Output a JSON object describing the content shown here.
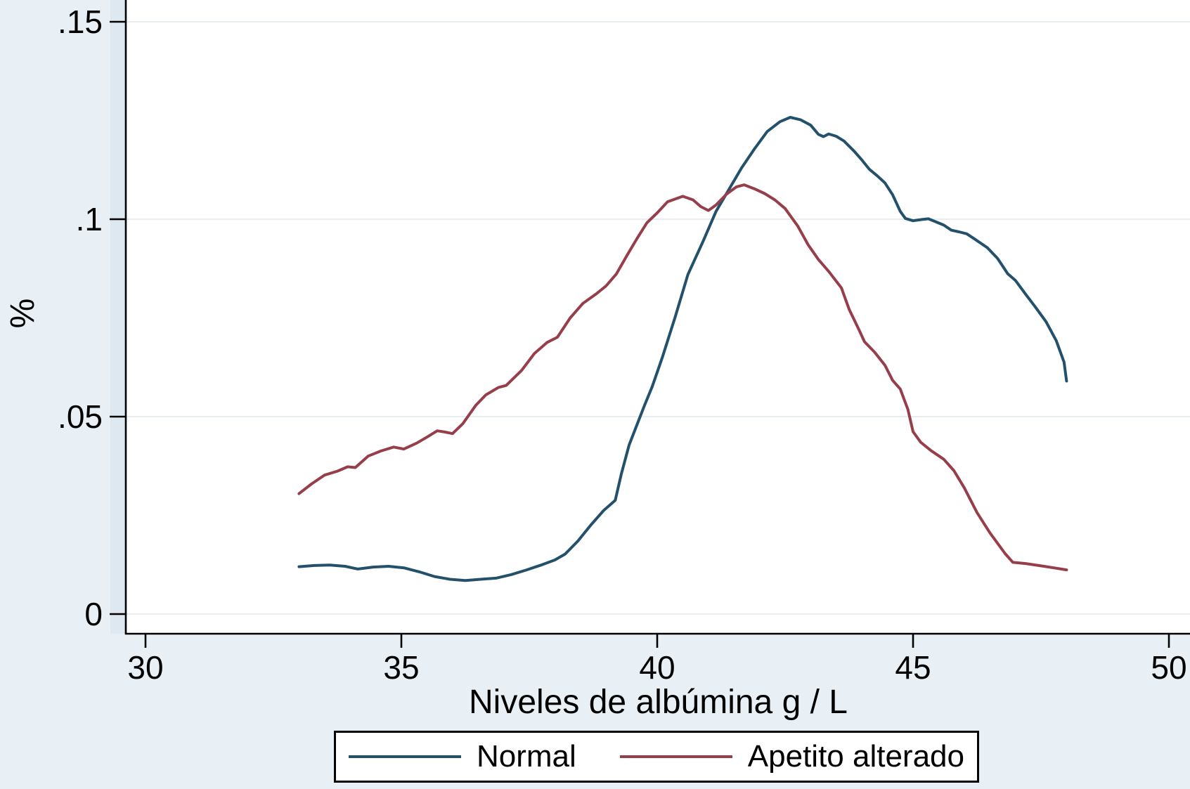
{
  "figure": {
    "background": "#e9f0f5",
    "plot_background": "#ffffff",
    "grid_color": "#e7edf0",
    "axis_color": "#000000",
    "band_color": "#dde8f0"
  },
  "axes": {
    "x": {
      "label": "Niveles de albúmina g / L",
      "ticks": [
        30,
        35,
        40,
        45,
        50
      ],
      "tick_labels": [
        "30",
        "35",
        "40",
        "45",
        "50"
      ]
    },
    "y": {
      "label": "%",
      "ticks": [
        0,
        0.05,
        0.1,
        0.15
      ],
      "tick_labels": [
        "0",
        ".05",
        ".1",
        ".15"
      ]
    }
  },
  "legend": {
    "position": "bottom-center",
    "items": [
      {
        "label": "Normal",
        "color": "#23506b"
      },
      {
        "label": "Apetito alterado",
        "color": "#963f4b"
      }
    ]
  },
  "chart_data": {
    "type": "line",
    "title": "",
    "xlabel": "Niveles de albúmina g / L",
    "ylabel": "%",
    "xlim": [
      29.6,
      50.4
    ],
    "ylim": [
      0,
      0.155
    ],
    "grid": "horizontal",
    "legend_position": "bottom-center",
    "series": [
      {
        "name": "Normal",
        "color": "#23506b",
        "points": [
          [
            33.0,
            0.012
          ],
          [
            33.3,
            0.0123
          ],
          [
            33.6,
            0.0124
          ],
          [
            33.9,
            0.0121
          ],
          [
            34.15,
            0.0114
          ],
          [
            34.45,
            0.0119
          ],
          [
            34.75,
            0.0121
          ],
          [
            35.05,
            0.0117
          ],
          [
            35.35,
            0.0107
          ],
          [
            35.65,
            0.0095
          ],
          [
            35.95,
            0.0088
          ],
          [
            36.25,
            0.0085
          ],
          [
            36.55,
            0.0088
          ],
          [
            36.85,
            0.0091
          ],
          [
            37.15,
            0.01
          ],
          [
            37.45,
            0.0112
          ],
          [
            37.75,
            0.0125
          ],
          [
            38.0,
            0.0137
          ],
          [
            38.2,
            0.0152
          ],
          [
            38.45,
            0.0185
          ],
          [
            38.7,
            0.0225
          ],
          [
            38.95,
            0.0262
          ],
          [
            39.18,
            0.0288
          ],
          [
            39.3,
            0.0355
          ],
          [
            39.45,
            0.0428
          ],
          [
            39.6,
            0.0478
          ],
          [
            39.75,
            0.0528
          ],
          [
            39.9,
            0.0575
          ],
          [
            40.1,
            0.065
          ],
          [
            40.35,
            0.0752
          ],
          [
            40.6,
            0.086
          ],
          [
            40.9,
            0.0945
          ],
          [
            41.15,
            0.102
          ],
          [
            41.4,
            0.1075
          ],
          [
            41.65,
            0.113
          ],
          [
            41.9,
            0.1178
          ],
          [
            42.15,
            0.1222
          ],
          [
            42.4,
            0.1247
          ],
          [
            42.6,
            0.1258
          ],
          [
            42.8,
            0.1252
          ],
          [
            43.0,
            0.1238
          ],
          [
            43.15,
            0.1215
          ],
          [
            43.25,
            0.1209
          ],
          [
            43.35,
            0.1216
          ],
          [
            43.5,
            0.121
          ],
          [
            43.65,
            0.1198
          ],
          [
            43.85,
            0.1172
          ],
          [
            44.0,
            0.115
          ],
          [
            44.15,
            0.1126
          ],
          [
            44.3,
            0.111
          ],
          [
            44.45,
            0.1092
          ],
          [
            44.6,
            0.1062
          ],
          [
            44.75,
            0.102
          ],
          [
            44.85,
            0.1002
          ],
          [
            45.0,
            0.0996
          ],
          [
            45.15,
            0.0999
          ],
          [
            45.3,
            0.1001
          ],
          [
            45.45,
            0.0993
          ],
          [
            45.6,
            0.0985
          ],
          [
            45.75,
            0.0972
          ],
          [
            45.9,
            0.0968
          ],
          [
            46.05,
            0.0963
          ],
          [
            46.2,
            0.095
          ],
          [
            46.45,
            0.0928
          ],
          [
            46.65,
            0.0901
          ],
          [
            46.85,
            0.0862
          ],
          [
            47.0,
            0.0845
          ],
          [
            47.2,
            0.081
          ],
          [
            47.4,
            0.0776
          ],
          [
            47.6,
            0.074
          ],
          [
            47.8,
            0.0692
          ],
          [
            47.95,
            0.0638
          ],
          [
            48.0,
            0.059
          ]
        ]
      },
      {
        "name": "Apetito alterado",
        "color": "#963f4b",
        "points": [
          [
            33.0,
            0.0305
          ],
          [
            33.25,
            0.033
          ],
          [
            33.5,
            0.0352
          ],
          [
            33.75,
            0.0362
          ],
          [
            33.95,
            0.0373
          ],
          [
            34.1,
            0.0371
          ],
          [
            34.35,
            0.04
          ],
          [
            34.6,
            0.0413
          ],
          [
            34.85,
            0.0423
          ],
          [
            35.05,
            0.0418
          ],
          [
            35.3,
            0.0433
          ],
          [
            35.5,
            0.0448
          ],
          [
            35.7,
            0.0464
          ],
          [
            35.85,
            0.0461
          ],
          [
            36.0,
            0.0457
          ],
          [
            36.2,
            0.0482
          ],
          [
            36.45,
            0.0528
          ],
          [
            36.65,
            0.0555
          ],
          [
            36.9,
            0.0574
          ],
          [
            37.05,
            0.0579
          ],
          [
            37.35,
            0.0617
          ],
          [
            37.6,
            0.066
          ],
          [
            37.85,
            0.0688
          ],
          [
            38.05,
            0.0701
          ],
          [
            38.3,
            0.075
          ],
          [
            38.55,
            0.0787
          ],
          [
            38.8,
            0.081
          ],
          [
            39.0,
            0.0831
          ],
          [
            39.2,
            0.0861
          ],
          [
            39.4,
            0.0906
          ],
          [
            39.6,
            0.095
          ],
          [
            39.8,
            0.0991
          ],
          [
            40.0,
            0.1016
          ],
          [
            40.2,
            0.1044
          ],
          [
            40.5,
            0.1058
          ],
          [
            40.7,
            0.1049
          ],
          [
            40.85,
            0.1032
          ],
          [
            41.0,
            0.1022
          ],
          [
            41.15,
            0.1036
          ],
          [
            41.35,
            0.1063
          ],
          [
            41.55,
            0.1082
          ],
          [
            41.7,
            0.1087
          ],
          [
            41.9,
            0.1077
          ],
          [
            42.1,
            0.1065
          ],
          [
            42.3,
            0.1049
          ],
          [
            42.5,
            0.1027
          ],
          [
            42.75,
            0.0982
          ],
          [
            42.95,
            0.0935
          ],
          [
            43.15,
            0.0898
          ],
          [
            43.35,
            0.0868
          ],
          [
            43.6,
            0.0826
          ],
          [
            43.75,
            0.0772
          ],
          [
            43.95,
            0.0718
          ],
          [
            44.05,
            0.069
          ],
          [
            44.25,
            0.0663
          ],
          [
            44.45,
            0.063
          ],
          [
            44.6,
            0.0592
          ],
          [
            44.75,
            0.057
          ],
          [
            44.9,
            0.0518
          ],
          [
            45.0,
            0.0462
          ],
          [
            45.15,
            0.0435
          ],
          [
            45.35,
            0.0414
          ],
          [
            45.6,
            0.0392
          ],
          [
            45.8,
            0.0363
          ],
          [
            46.0,
            0.032
          ],
          [
            46.25,
            0.0257
          ],
          [
            46.5,
            0.0206
          ],
          [
            46.8,
            0.0153
          ],
          [
            46.95,
            0.0131
          ],
          [
            47.2,
            0.0128
          ],
          [
            47.5,
            0.0122
          ],
          [
            47.75,
            0.0117
          ],
          [
            48.0,
            0.0112
          ]
        ]
      }
    ]
  }
}
